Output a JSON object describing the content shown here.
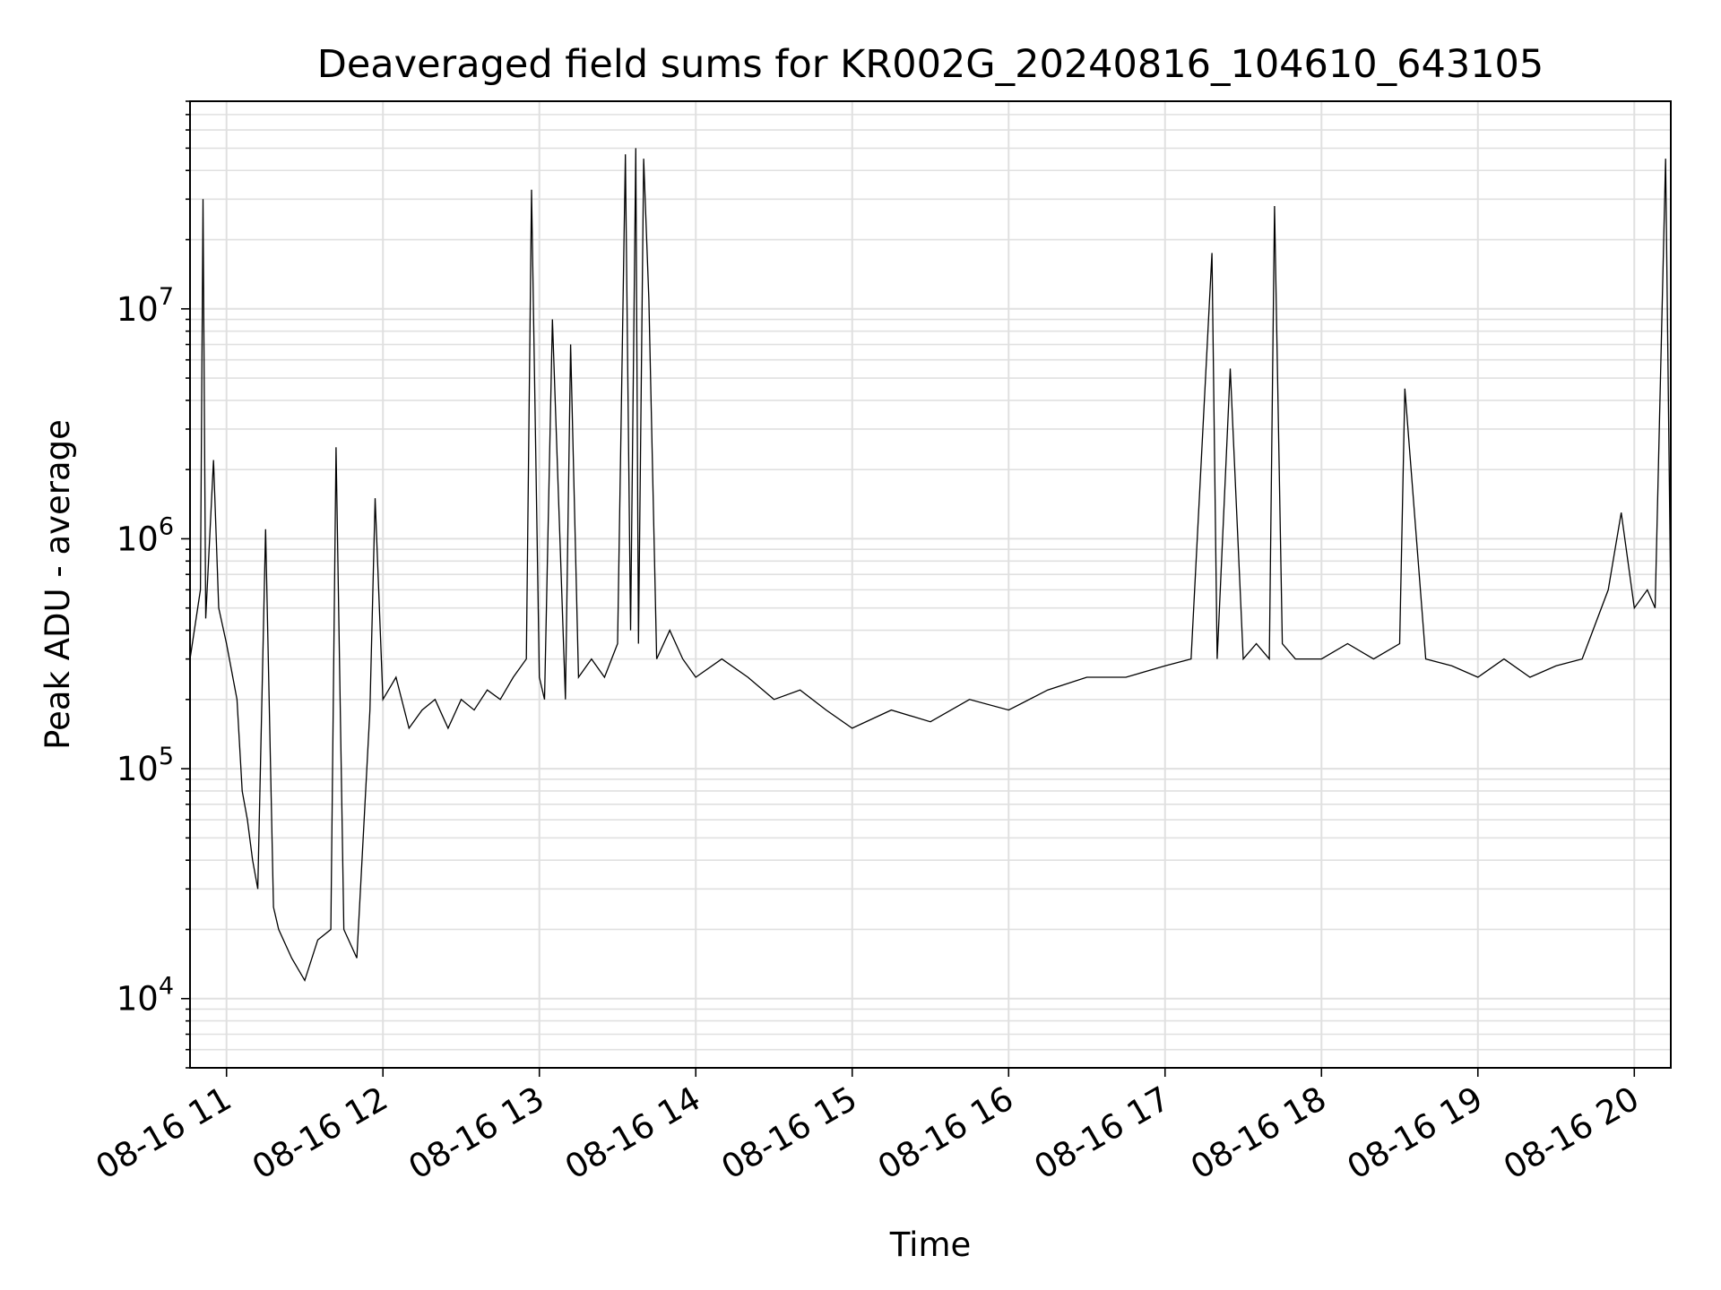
{
  "chart_data": {
    "type": "line",
    "title": "Deaveraged field sums for KR002G_20240816_104610_643105",
    "xlabel": "Time",
    "ylabel": "Peak ADU - average",
    "yscale": "log",
    "grid": true,
    "line_color": "#000000",
    "grid_color": "#e0e0e0",
    "xlim": [
      "2024-08-16 10:46",
      "2024-08-16 20:14"
    ],
    "ylim": [
      5000,
      80000000
    ],
    "x_ticks": [
      {
        "value": "2024-08-16 11:00",
        "label": "08-16 11"
      },
      {
        "value": "2024-08-16 12:00",
        "label": "08-16 12"
      },
      {
        "value": "2024-08-16 13:00",
        "label": "08-16 13"
      },
      {
        "value": "2024-08-16 14:00",
        "label": "08-16 14"
      },
      {
        "value": "2024-08-16 15:00",
        "label": "08-16 15"
      },
      {
        "value": "2024-08-16 16:00",
        "label": "08-16 16"
      },
      {
        "value": "2024-08-16 17:00",
        "label": "08-16 17"
      },
      {
        "value": "2024-08-16 18:00",
        "label": "08-16 18"
      },
      {
        "value": "2024-08-16 19:00",
        "label": "08-16 19"
      },
      {
        "value": "2024-08-16 20:00",
        "label": "08-16 20"
      }
    ],
    "y_ticks": [
      {
        "value": 10000,
        "mantissa": "10",
        "exp": "4"
      },
      {
        "value": 100000,
        "mantissa": "10",
        "exp": "5"
      },
      {
        "value": 1000000,
        "mantissa": "10",
        "exp": "6"
      },
      {
        "value": 10000000,
        "mantissa": "10",
        "exp": "7"
      }
    ],
    "series": [
      {
        "x": [
          "2024-08-16 10:46",
          "2024-08-16 10:50",
          "2024-08-16 10:51",
          "2024-08-16 10:52",
          "2024-08-16 10:55",
          "2024-08-16 10:57",
          "2024-08-16 11:00",
          "2024-08-16 11:04",
          "2024-08-16 11:06",
          "2024-08-16 11:08",
          "2024-08-16 11:10",
          "2024-08-16 11:12",
          "2024-08-16 11:15",
          "2024-08-16 11:18",
          "2024-08-16 11:20",
          "2024-08-16 11:25",
          "2024-08-16 11:30",
          "2024-08-16 11:35",
          "2024-08-16 11:40",
          "2024-08-16 11:42",
          "2024-08-16 11:45",
          "2024-08-16 11:50",
          "2024-08-16 11:55",
          "2024-08-16 11:57",
          "2024-08-16 12:00",
          "2024-08-16 12:05",
          "2024-08-16 12:10",
          "2024-08-16 12:15",
          "2024-08-16 12:20",
          "2024-08-16 12:25",
          "2024-08-16 12:30",
          "2024-08-16 12:35",
          "2024-08-16 12:40",
          "2024-08-16 12:45",
          "2024-08-16 12:50",
          "2024-08-16 12:55",
          "2024-08-16 12:57",
          "2024-08-16 13:00",
          "2024-08-16 13:02",
          "2024-08-16 13:05",
          "2024-08-16 13:10",
          "2024-08-16 13:12",
          "2024-08-16 13:15",
          "2024-08-16 13:20",
          "2024-08-16 13:25",
          "2024-08-16 13:30",
          "2024-08-16 13:33",
          "2024-08-16 13:35",
          "2024-08-16 13:37",
          "2024-08-16 13:38",
          "2024-08-16 13:40",
          "2024-08-16 13:42",
          "2024-08-16 13:45",
          "2024-08-16 13:50",
          "2024-08-16 13:55",
          "2024-08-16 14:00",
          "2024-08-16 14:10",
          "2024-08-16 14:20",
          "2024-08-16 14:30",
          "2024-08-16 14:40",
          "2024-08-16 14:50",
          "2024-08-16 15:00",
          "2024-08-16 15:15",
          "2024-08-16 15:30",
          "2024-08-16 15:45",
          "2024-08-16 16:00",
          "2024-08-16 16:15",
          "2024-08-16 16:30",
          "2024-08-16 16:45",
          "2024-08-16 17:00",
          "2024-08-16 17:10",
          "2024-08-16 17:18",
          "2024-08-16 17:20",
          "2024-08-16 17:25",
          "2024-08-16 17:30",
          "2024-08-16 17:35",
          "2024-08-16 17:40",
          "2024-08-16 17:42",
          "2024-08-16 17:45",
          "2024-08-16 17:50",
          "2024-08-16 18:00",
          "2024-08-16 18:10",
          "2024-08-16 18:20",
          "2024-08-16 18:30",
          "2024-08-16 18:32",
          "2024-08-16 18:40",
          "2024-08-16 18:50",
          "2024-08-16 19:00",
          "2024-08-16 19:10",
          "2024-08-16 19:20",
          "2024-08-16 19:30",
          "2024-08-16 19:40",
          "2024-08-16 19:50",
          "2024-08-16 19:55",
          "2024-08-16 20:00",
          "2024-08-16 20:05",
          "2024-08-16 20:08",
          "2024-08-16 20:12",
          "2024-08-16 20:14"
        ],
        "y": [
          300000,
          600000,
          30000000,
          450000,
          2200000,
          500000,
          350000,
          200000,
          80000,
          60000,
          40000,
          30000,
          1100000,
          25000,
          20000,
          15000,
          12000,
          18000,
          20000,
          2500000,
          20000,
          15000,
          180000,
          1500000,
          200000,
          250000,
          150000,
          180000,
          200000,
          150000,
          200000,
          180000,
          220000,
          200000,
          250000,
          300000,
          33000000,
          250000,
          200000,
          9000000,
          200000,
          7000000,
          250000,
          300000,
          250000,
          350000,
          47000000,
          400000,
          50000000,
          350000,
          45000000,
          11000000,
          300000,
          400000,
          300000,
          250000,
          300000,
          250000,
          200000,
          220000,
          180000,
          150000,
          180000,
          160000,
          200000,
          180000,
          220000,
          250000,
          250000,
          280000,
          300000,
          17500000,
          300000,
          5500000,
          300000,
          350000,
          300000,
          28000000,
          350000,
          300000,
          300000,
          350000,
          300000,
          350000,
          4500000,
          300000,
          280000,
          250000,
          300000,
          250000,
          280000,
          300000,
          600000,
          1300000,
          500000,
          600000,
          500000,
          45000000,
          500000
        ]
      }
    ]
  }
}
